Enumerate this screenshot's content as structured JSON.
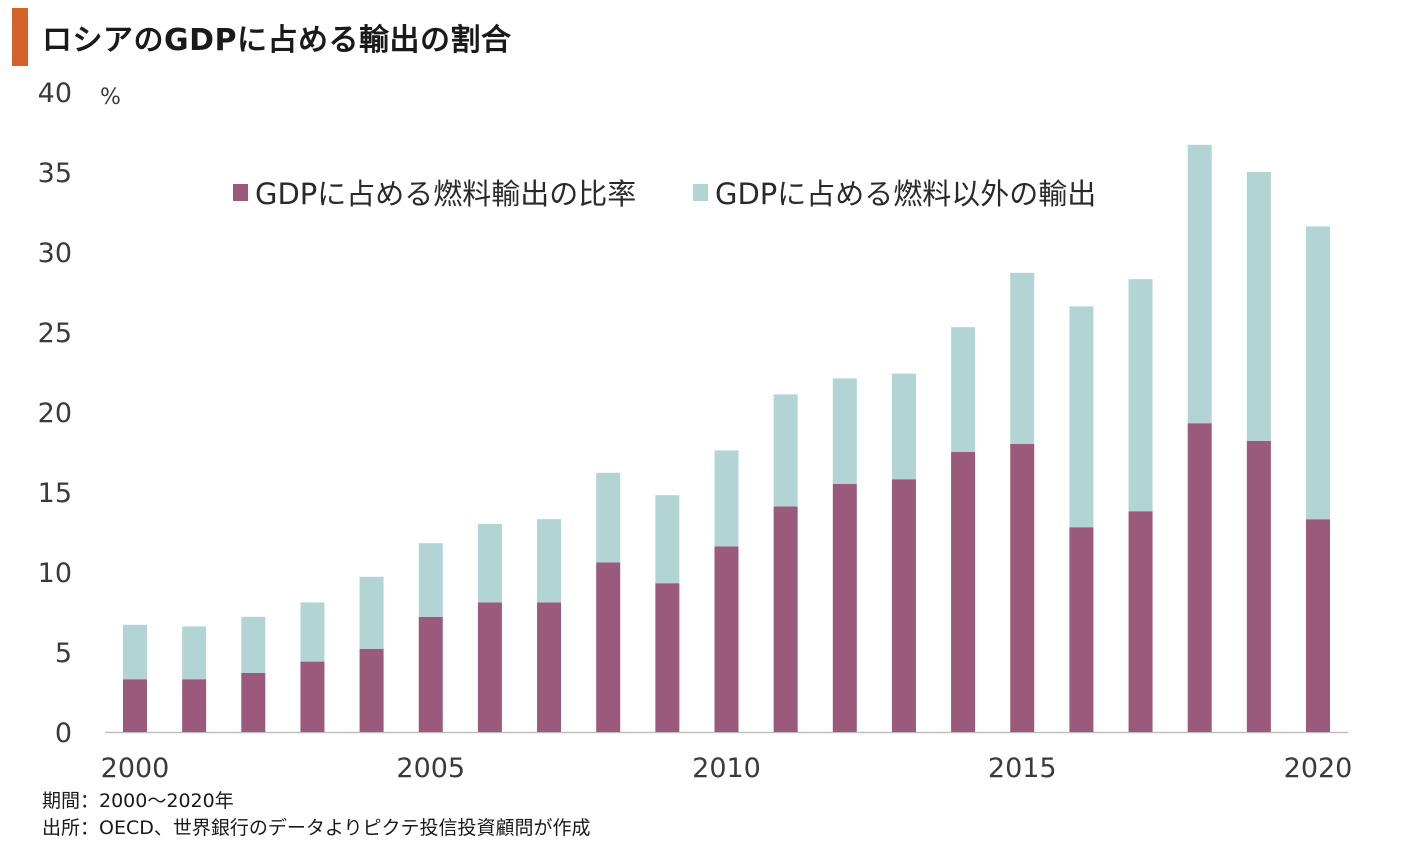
{
  "header": {
    "title": "ロシアのGDPに占める輸出の割合"
  },
  "footer": {
    "period": "期間：2000〜2020年",
    "source": "出所：OECD、世界銀行のデータよりピクテ投信投資顧問が作成"
  },
  "chart_data": {
    "type": "bar",
    "stacked": true,
    "title": "ロシアのGDPに占める輸出の割合",
    "ylabel": "%",
    "xlabel": "",
    "ylim": [
      0,
      40
    ],
    "yticks": [
      0,
      5,
      10,
      15,
      20,
      25,
      30,
      35,
      40
    ],
    "xtick_labels": [
      "2000",
      "2005",
      "2010",
      "2015",
      "2020"
    ],
    "categories": [
      2000,
      2001,
      2002,
      2003,
      2004,
      2005,
      2006,
      2007,
      2008,
      2009,
      2010,
      2011,
      2012,
      2013,
      2014,
      2015,
      2016,
      2017,
      2018,
      2019,
      2020
    ],
    "legend_position": "top",
    "grid": false,
    "series": [
      {
        "name": "GDPに占める燃料輸出の比率",
        "color": "#9b5a7c",
        "values": [
          3.3,
          3.3,
          3.7,
          4.4,
          5.2,
          7.2,
          8.1,
          8.1,
          10.6,
          9.3,
          11.6,
          14.1,
          15.5,
          15.8,
          17.5,
          18.0,
          12.8,
          13.8,
          19.3,
          18.2,
          13.3
        ]
      },
      {
        "name": "GDPに占める燃料以外の輸出",
        "color": "#b2d4d4",
        "values": [
          3.4,
          3.3,
          3.5,
          3.7,
          4.5,
          4.6,
          4.9,
          5.2,
          5.6,
          5.5,
          6.0,
          7.0,
          6.6,
          6.6,
          7.8,
          10.7,
          13.8,
          14.5,
          17.4,
          16.8,
          18.3
        ]
      }
    ]
  }
}
